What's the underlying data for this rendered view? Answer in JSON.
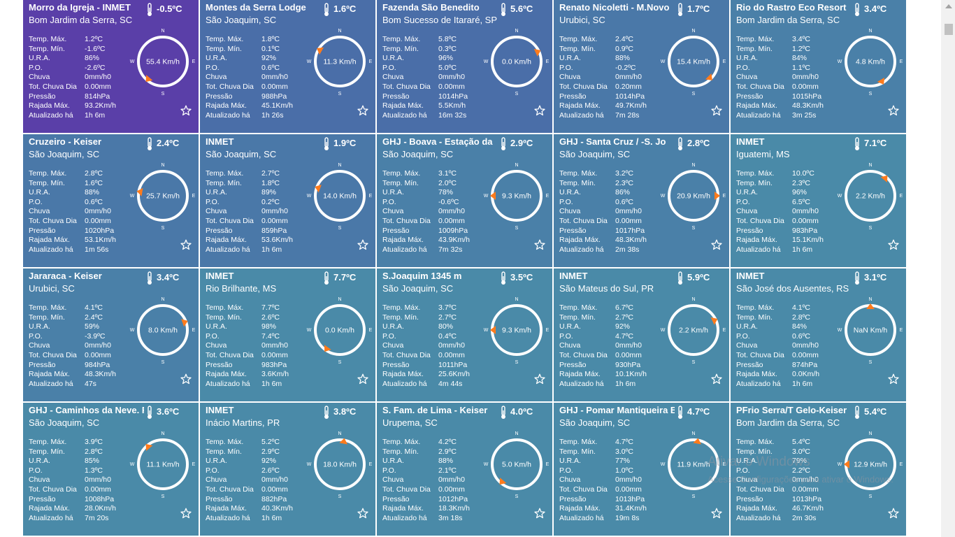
{
  "labels": {
    "max": "Temp. Máx.",
    "min": "Temp. Mín.",
    "ura": "U.R.A.",
    "po": "P.O.",
    "rain": "Chuva",
    "rain_total": "Tot. Chuva Dia",
    "pressure": "Pressão",
    "gust": "Rajada Máx.",
    "updated": "Atualizado há"
  },
  "compass_letters": {
    "n": "N",
    "s": "S",
    "w": "W",
    "e": "E"
  },
  "icons": {
    "thermometer": "thermometer-icon",
    "favorite": "star-icon",
    "wind_pointer": "wind-direction-icon"
  },
  "colors": {
    "card_blue": "#4a86a8",
    "card_teal": "#4896a8",
    "card_purple": "#4a47a8",
    "pointer": "#ff7b1c"
  },
  "stations": [
    {
      "name": "Morro da Igreja - INMET",
      "location": "Bom Jardim da Serra, SC",
      "temp": "-0.5ºC",
      "max": "1.2ºC",
      "min": "-1.6ºC",
      "ura": "86%",
      "po": "-2.6ºC",
      "rain": "0mm/h0",
      "rain_total": "0.00mm",
      "pressure": "814hPa",
      "gust": "93.2Km/h",
      "updated": "1h 6m",
      "wind": "55.4 Km/h",
      "wind_dir_deg": 220,
      "bg": "#5a3fa8"
    },
    {
      "name": "Montes da Serra Lodge",
      "location": "São Joaquim, SC",
      "temp": "1.6ºC",
      "max": "1.8ºC",
      "min": "0.1ºC",
      "ura": "92%",
      "po": "0.6ºC",
      "rain": "0mm/h0",
      "rain_total": "0.00mm",
      "pressure": "988hPa",
      "gust": "45.1Km/h",
      "updated": "1h 26s",
      "wind": "11.3 Km/h",
      "wind_dir_deg": 300,
      "bg": "#4a6ea8"
    },
    {
      "name": "Fazenda São Benedito",
      "location": "Bom Sucesso de Itararé, SP",
      "temp": "5.6ºC",
      "max": "5.8ºC",
      "min": "0.3ºC",
      "ura": "96%",
      "po": "5.0ºC",
      "rain": "0mm/h0",
      "rain_total": "0.00mm",
      "pressure": "1014hPa",
      "gust": "5.5Km/h",
      "updated": "16m 32s",
      "wind": "0.0 Km/h",
      "wind_dir_deg": 65,
      "bg": "#4a6ea8"
    },
    {
      "name": "Renato Nicoletti - M.Novo",
      "location": "Urubici, SC",
      "temp": "1.7ºC",
      "max": "2.4ºC",
      "min": "0.9ºC",
      "ura": "88%",
      "po": "-0.2ºC",
      "rain": "0mm/h0",
      "rain_total": "0.20mm",
      "pressure": "1014hPa",
      "gust": "49.7Km/h",
      "updated": "7m 28s",
      "wind": "15.4 Km/h",
      "wind_dir_deg": 135,
      "bg": "#4a78a8"
    },
    {
      "name": "Rio do Rastro Eco Resort",
      "location": "Bom Jardim da Serra, SC",
      "temp": "3.4ºC",
      "max": "3.4ºC",
      "min": "1.2ºC",
      "ura": "84%",
      "po": "1.1ºC",
      "rain": "0mm/h0",
      "rain_total": "0.00mm",
      "pressure": "1015hPa",
      "gust": "48.3Km/h",
      "updated": "3m 25s",
      "wind": "4.8 Km/h",
      "wind_dir_deg": 150,
      "bg": "#4a80a8"
    },
    {
      "name": "Cruzeiro - Keiser",
      "location": "São Joaquim, SC",
      "temp": "2.4ºC",
      "max": "2.8ºC",
      "min": "1.6ºC",
      "ura": "88%",
      "po": "0.6ºC",
      "rain": "0mm/h0",
      "rain_total": "0.00mm",
      "pressure": "1020hPa",
      "gust": "53.1Km/h",
      "updated": "1m 56s",
      "wind": "25.7 Km/h",
      "wind_dir_deg": 280,
      "bg": "#4a78a8"
    },
    {
      "name": "INMET",
      "location": "São Joaquim, SC",
      "temp": "1.9ºC",
      "max": "2.7ºC",
      "min": "1.8ºC",
      "ura": "89%",
      "po": "0.2ºC",
      "rain": "0mm/h0",
      "rain_total": "0.00mm",
      "pressure": "859hPa",
      "gust": "53.6Km/h",
      "updated": "1h 6m",
      "wind": "14.0 Km/h",
      "wind_dir_deg": 290,
      "bg": "#4a78a8"
    },
    {
      "name": "GHJ - Boava - Estação da",
      "location": "São Joaquim, SC",
      "temp": "2.9ºC",
      "max": "3.1ºC",
      "min": "2.0ºC",
      "ura": "78%",
      "po": "-0.6ºC",
      "rain": "0mm/h0",
      "rain_total": "0.00mm",
      "pressure": "1009hPa",
      "gust": "43.9Km/h",
      "updated": "7m 32s",
      "wind": "9.3 Km/h",
      "wind_dir_deg": 270,
      "bg": "#4a80a8"
    },
    {
      "name": "GHJ - Santa Cruz / -S. Jo",
      "location": "São Joaquim, SC",
      "temp": "2.8ºC",
      "max": "3.2ºC",
      "min": "2.3ºC",
      "ura": "86%",
      "po": "0.6ºC",
      "rain": "0mm/h0",
      "rain_total": "0.00mm",
      "pressure": "1017hPa",
      "gust": "48.3Km/h",
      "updated": "2m 38s",
      "wind": "20.9 Km/h",
      "wind_dir_deg": 90,
      "bg": "#4a80a8"
    },
    {
      "name": "INMET",
      "location": "Iguatemi, MS",
      "temp": "7.1ºC",
      "max": "10.0ºC",
      "min": "2.3ºC",
      "ura": "96%",
      "po": "6.5ºC",
      "rain": "0mm/h0",
      "rain_total": "0.00mm",
      "pressure": "983hPa",
      "gust": "15.1Km/h",
      "updated": "1h 6m",
      "wind": "2.2 Km/h",
      "wind_dir_deg": 40,
      "bg": "#4a8aa8"
    },
    {
      "name": "Jararaca - Keiser",
      "location": "Urubici, SC",
      "temp": "3.4ºC",
      "max": "4.1ºC",
      "min": "2.4ºC",
      "ura": "59%",
      "po": "-3.9ºC",
      "rain": "0mm/h0",
      "rain_total": "0.00mm",
      "pressure": "984hPa",
      "gust": "48.3Km/h",
      "updated": "47s",
      "wind": "8.0 Km/h",
      "wind_dir_deg": 70,
      "bg": "#4a80a8"
    },
    {
      "name": "INMET",
      "location": "Rio Brilhante, MS",
      "temp": "7.7ºC",
      "max": "7.7ºC",
      "min": "2.6ºC",
      "ura": "98%",
      "po": "7.4ºC",
      "rain": "0mm/h0",
      "rain_total": "0.00mm",
      "pressure": "983hPa",
      "gust": "3.6Km/h",
      "updated": "1h 6m",
      "wind": "0.0 Km/h",
      "wind_dir_deg": 215,
      "bg": "#4a8aa8"
    },
    {
      "name": "S.Joaquim 1345 m",
      "location": "São Joaquim, SC",
      "temp": "3.5ºC",
      "max": "3.7ºC",
      "min": "2.7ºC",
      "ura": "80%",
      "po": "0.4ºC",
      "rain": "0mm/h0",
      "rain_total": "0.00mm",
      "pressure": "1011hPa",
      "gust": "25.6Km/h",
      "updated": "4m 44s",
      "wind": "9.3 Km/h",
      "wind_dir_deg": 270,
      "bg": "#4a8aa8"
    },
    {
      "name": "INMET",
      "location": "São Mateus do Sul, PR",
      "temp": "5.9ºC",
      "max": "6.7ºC",
      "min": "2.7ºC",
      "ura": "92%",
      "po": "4.7ºC",
      "rain": "0mm/h0",
      "rain_total": "0.00mm",
      "pressure": "930hPa",
      "gust": "10.1Km/h",
      "updated": "1h 6m",
      "wind": "2.2 Km/h",
      "wind_dir_deg": 65,
      "bg": "#4a8aa8"
    },
    {
      "name": "INMET",
      "location": "São José dos Ausentes, RS",
      "temp": "3.1ºC",
      "max": "4.1ºC",
      "min": "2.8ºC",
      "ura": "84%",
      "po": "0.6ºC",
      "rain": "0mm/h0",
      "rain_total": "0.00mm",
      "pressure": "874hPa",
      "gust": "0.0Km/h",
      "updated": "1h 6m",
      "wind": "NaN Km/h",
      "wind_dir_deg": 0,
      "bg": "#4a8aa8"
    },
    {
      "name": "GHJ - Caminhos da Neve. F",
      "location": "São Joaquim, SC",
      "temp": "3.6ºC",
      "max": "3.9ºC",
      "min": "2.8ºC",
      "ura": "85%",
      "po": "1.3ºC",
      "rain": "0mm/h0",
      "rain_total": "0.00mm",
      "pressure": "1008hPa",
      "gust": "28.0Km/h",
      "updated": "7m 20s",
      "wind": "11.1 Km/h",
      "wind_dir_deg": 320,
      "bg": "#4a8aa8"
    },
    {
      "name": "INMET",
      "location": "Inácio Martins, PR",
      "temp": "3.8ºC",
      "max": "5.2ºC",
      "min": "2.9ºC",
      "ura": "92%",
      "po": "2.6ºC",
      "rain": "0mm/h0",
      "rain_total": "0.00mm",
      "pressure": "882hPa",
      "gust": "40.3Km/h",
      "updated": "1h 6m",
      "wind": "18.0 Km/h",
      "wind_dir_deg": 10,
      "bg": "#4a8aa8"
    },
    {
      "name": "S. Fam. de Lima - Keiser",
      "location": "Urupema, SC",
      "temp": "4.0ºC",
      "max": "4.2ºC",
      "min": "2.9ºC",
      "ura": "88%",
      "po": "2.1ºC",
      "rain": "0mm/h0",
      "rain_total": "0.00mm",
      "pressure": "1012hPa",
      "gust": "18.3Km/h",
      "updated": "3m 18s",
      "wind": "5.0 Km/h",
      "wind_dir_deg": 220,
      "bg": "#4a8aa8"
    },
    {
      "name": "GHJ - Pomar Mantiqueira B",
      "location": "São Joaquim, SC",
      "temp": "4.7ºC",
      "max": "4.7ºC",
      "min": "3.0ºC",
      "ura": "77%",
      "po": "1.0ºC",
      "rain": "0mm/h0",
      "rain_total": "0.00mm",
      "pressure": "1013hPa",
      "gust": "31.4Km/h",
      "updated": "19m 8s",
      "wind": "11.9 Km/h",
      "wind_dir_deg": 10,
      "bg": "#4a8aa8"
    },
    {
      "name": "PFrio Serra/T Gelo-Keiser",
      "location": "Bom Jardim da Serra, SC",
      "temp": "5.4ºC",
      "max": "5.4ºC",
      "min": "3.0ºC",
      "ura": "79%",
      "po": "2.2ºC",
      "rain": "0mm/h0",
      "rain_total": "0.00mm",
      "pressure": "1013hPa",
      "gust": "46.7Km/h",
      "updated": "2m 30s",
      "wind": "12.9 Km/h",
      "wind_dir_deg": 270,
      "bg": "#4a8aa8"
    }
  ],
  "watermark": {
    "title": "Ativar o Windows",
    "subtitle": "Acesse Configurações para ativar o Windows."
  }
}
